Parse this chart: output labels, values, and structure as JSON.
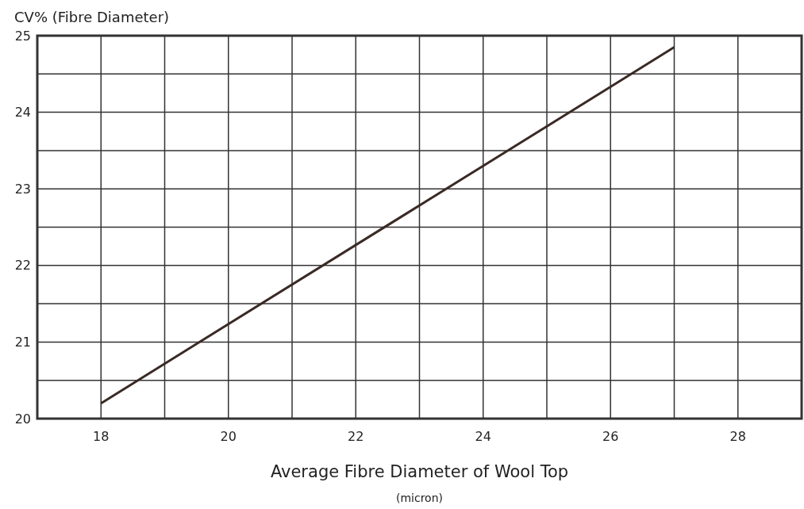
{
  "chart_data": {
    "type": "line",
    "ylabel": "CV% (Fibre Diameter)",
    "xlabel": "Average Fibre Diameter of Wool Top",
    "annotations": [
      "(micron)"
    ],
    "x": [
      18,
      27
    ],
    "series": [
      {
        "color": "#3a2a25",
        "values": [
          20.2,
          24.85
        ]
      }
    ],
    "xlim": [
      17,
      29
    ],
    "xticks": [
      {
        "value": 17,
        "label": null
      },
      18,
      {
        "value": 19,
        "label": null
      },
      20,
      {
        "value": 21,
        "label": null
      },
      22,
      {
        "value": 23,
        "label": null
      },
      24,
      {
        "value": 25,
        "label": null
      },
      26,
      {
        "value": 27,
        "label": null
      },
      28,
      {
        "value": 29,
        "label": null
      }
    ],
    "ylim": [
      20,
      25
    ],
    "yticks": [
      20,
      {
        "value": 20.5,
        "label": null
      },
      21,
      {
        "value": 21.5,
        "label": null
      },
      22,
      {
        "value": 22.5,
        "label": null
      },
      23,
      {
        "value": 23.5,
        "label": null
      },
      24,
      {
        "value": 24.5,
        "label": null
      },
      25
    ],
    "grid": true,
    "marker": "none",
    "line_style": "solid"
  }
}
